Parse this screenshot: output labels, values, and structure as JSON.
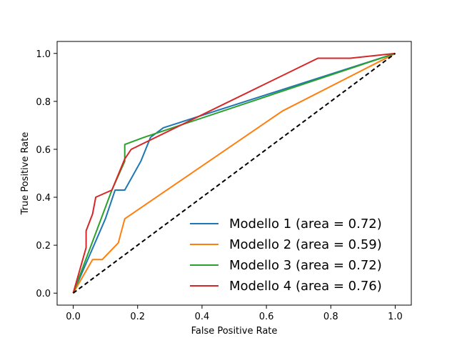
{
  "chart_data": {
    "type": "line",
    "title": "",
    "xlabel": "False Positive Rate",
    "ylabel": "True Positive Rate",
    "xlim": [
      -0.05,
      1.05
    ],
    "ylim": [
      -0.05,
      1.05
    ],
    "xticks": [
      "0.0",
      "0.2",
      "0.4",
      "0.6",
      "0.8",
      "1.0"
    ],
    "yticks": [
      "0.0",
      "0.2",
      "0.4",
      "0.6",
      "0.8",
      "1.0"
    ],
    "grid": false,
    "legend_position": "lower-right",
    "series": [
      {
        "name": "Modello 1 (area = 0.72)",
        "color": "#1f77b4",
        "x": [
          0.0,
          0.1,
          0.13,
          0.16,
          0.21,
          0.24,
          0.28,
          1.0
        ],
        "y": [
          0.0,
          0.31,
          0.43,
          0.43,
          0.55,
          0.65,
          0.69,
          1.0
        ]
      },
      {
        "name": "Modello 2 (area = 0.59)",
        "color": "#ff7f0e",
        "x": [
          0.0,
          0.03,
          0.06,
          0.09,
          0.14,
          0.16,
          0.65,
          1.0
        ],
        "y": [
          0.0,
          0.07,
          0.14,
          0.14,
          0.21,
          0.31,
          0.76,
          1.0
        ]
      },
      {
        "name": "Modello 3  (area = 0.72)",
        "color": "#2ca02c",
        "x": [
          0.0,
          0.12,
          0.16,
          0.16,
          0.22,
          1.0
        ],
        "y": [
          0.0,
          0.43,
          0.55,
          0.62,
          0.65,
          1.0
        ]
      },
      {
        "name": "Modello 4  (area = 0.76)",
        "color": "#d62728",
        "x": [
          0.0,
          0.04,
          0.04,
          0.06,
          0.07,
          0.12,
          0.16,
          0.18,
          0.76,
          0.86,
          1.0
        ],
        "y": [
          0.0,
          0.19,
          0.26,
          0.33,
          0.4,
          0.43,
          0.56,
          0.6,
          0.98,
          0.98,
          1.0
        ]
      }
    ],
    "reference_line": {
      "color": "#000000",
      "style": "dashed",
      "x": [
        0.0,
        1.0
      ],
      "y": [
        0.0,
        1.0
      ]
    }
  }
}
